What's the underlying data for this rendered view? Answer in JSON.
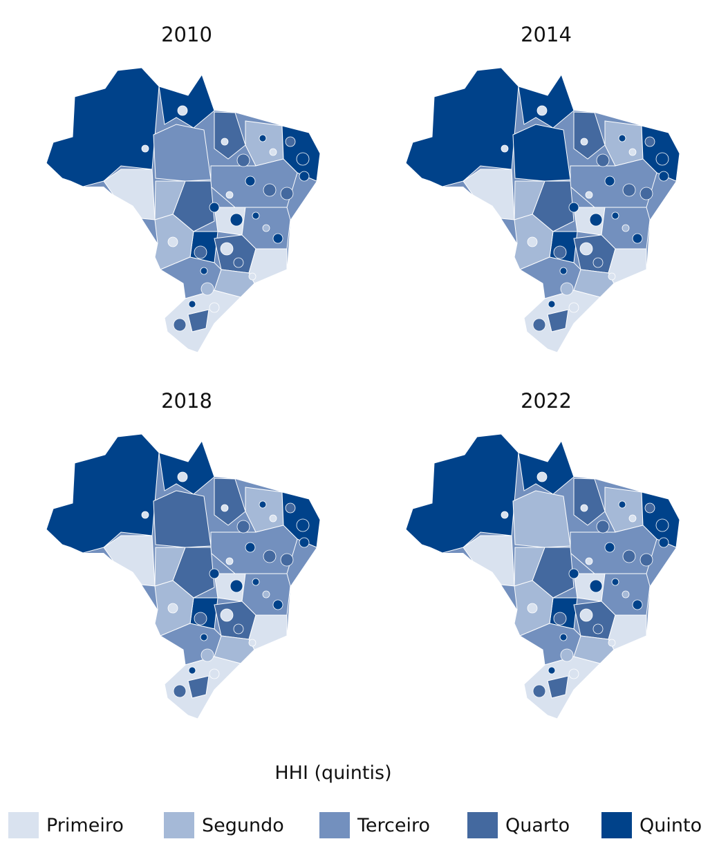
{
  "colors": {
    "primeiro": "#d9e2ef",
    "segundo": "#a5b9d7",
    "terceiro": "#7390be",
    "quarto": "#44699f",
    "quinto": "#00428a",
    "outline": "#ffffff"
  },
  "panels": [
    {
      "year": "2010",
      "north_quintile": "quinto",
      "center_quintile": "terceiro",
      "west_quintile": "primeiro"
    },
    {
      "year": "2014",
      "north_quintile": "quinto",
      "center_quintile": "quinto",
      "west_quintile": "primeiro"
    },
    {
      "year": "2018",
      "north_quintile": "quinto",
      "center_quintile": "quarto",
      "west_quintile": "primeiro"
    },
    {
      "year": "2022",
      "north_quintile": "quinto",
      "center_quintile": "segundo",
      "west_quintile": "primeiro"
    }
  ],
  "legend": {
    "title": "HHI (quintis)",
    "items": [
      {
        "label": "Primeiro",
        "color_key": "primeiro"
      },
      {
        "label": "Segundo",
        "color_key": "segundo"
      },
      {
        "label": "Terceiro",
        "color_key": "terceiro"
      },
      {
        "label": "Quarto",
        "color_key": "quarto"
      },
      {
        "label": "Quinto",
        "color_key": "quinto"
      }
    ]
  }
}
